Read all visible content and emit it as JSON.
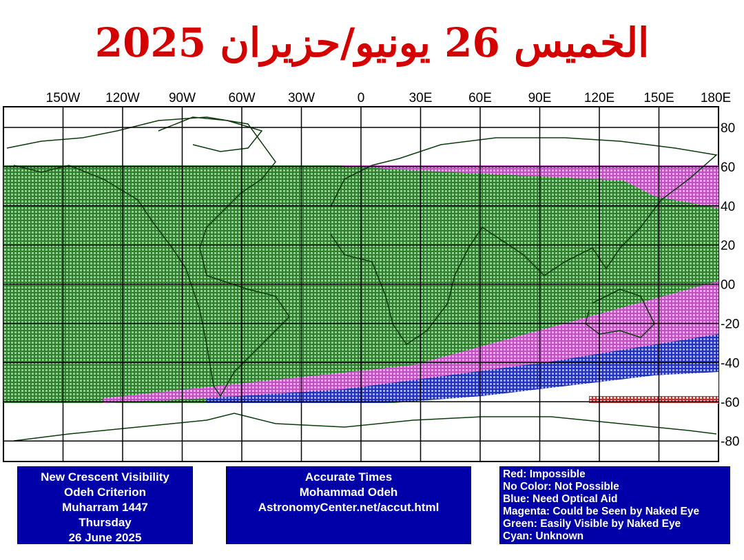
{
  "header": {
    "title": "الخميس 26 يونيو/حزيران 2025"
  },
  "map": {
    "longitude_labels": [
      "150W",
      "120W",
      "90W",
      "60W",
      "30W",
      "0",
      "30E",
      "60E",
      "90E",
      "120E",
      "150E",
      "180E"
    ],
    "latitude_labels": [
      "80",
      "60",
      "40",
      "20",
      "00",
      "-20",
      "-40",
      "-60",
      "-80"
    ]
  },
  "info_boxes": [
    {
      "lines": [
        "New Crescent Visibility",
        "Odeh Criterion",
        "Muharram 1447",
        "Thursday",
        "26 June 2025"
      ]
    },
    {
      "lines": [
        "Accurate Times",
        "Mohammad Odeh",
        "AstronomyCenter.net/accut.html"
      ]
    },
    {
      "lines": [
        "Red: Impossible",
        "No Color: Not Possible",
        "Blue: Need Optical Aid",
        "Magenta: Could be Seen by Naked Eye",
        "Green: Easily Visible by Naked Eye",
        "Cyan: Unknown"
      ]
    }
  ]
}
